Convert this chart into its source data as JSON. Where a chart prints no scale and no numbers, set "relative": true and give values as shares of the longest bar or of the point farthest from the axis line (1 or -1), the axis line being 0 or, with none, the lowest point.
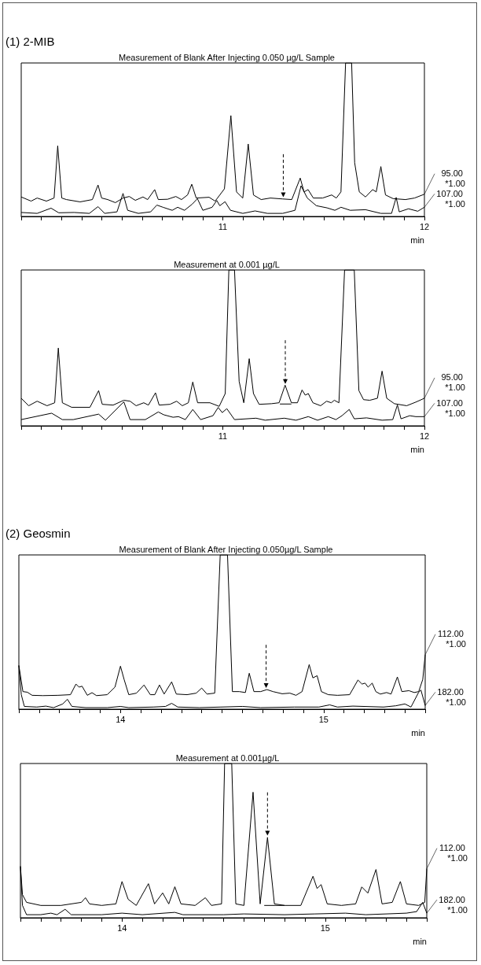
{
  "chart_data": [
    {
      "type": "line",
      "title": "(1) 2-MIB",
      "subtitle": "Measurement of Blank After Injecting 0.050 µg/L Sample",
      "xlabel": "min",
      "relative": true,
      "xlim": [
        10,
        12
      ],
      "xticks": [
        {
          "value": 10,
          "label": null
        },
        {
          "value": 10.1,
          "label": null
        },
        {
          "value": 10.2,
          "label": null
        },
        {
          "value": 10.3,
          "label": null
        },
        {
          "value": 10.4,
          "label": null
        },
        {
          "value": 10.5,
          "label": null
        },
        {
          "value": 10.6,
          "label": null
        },
        {
          "value": 10.7,
          "label": null
        },
        {
          "value": 10.8,
          "label": null
        },
        {
          "value": 10.9,
          "label": null
        },
        11,
        {
          "value": 11.1,
          "label": null
        },
        {
          "value": 11.2,
          "label": null
        },
        {
          "value": 11.3,
          "label": null
        },
        {
          "value": 11.4,
          "label": null
        },
        {
          "value": 11.5,
          "label": null
        },
        {
          "value": 11.6,
          "label": null
        },
        {
          "value": 11.7,
          "label": null
        },
        {
          "value": 11.8,
          "label": null
        },
        {
          "value": 11.9,
          "label": null
        },
        12
      ],
      "series": [
        {
          "name": "95.00 *1.00",
          "color": "#000000",
          "x": [
            10.0,
            10.049,
            10.079,
            10.125,
            10.163,
            10.181,
            10.201,
            10.224,
            10.292,
            10.353,
            10.381,
            10.399,
            10.429,
            10.467,
            10.505,
            10.536,
            10.566,
            10.604,
            10.627,
            10.662,
            10.68,
            10.726,
            10.767,
            10.795,
            10.825,
            10.846,
            10.868,
            10.932,
            10.962,
            11.008,
            11.04,
            11.068,
            11.099,
            11.126,
            11.152,
            11.19,
            11.236,
            11.297,
            11.342,
            11.384,
            11.403,
            11.423,
            11.449,
            11.495,
            11.54,
            11.563,
            11.586,
            11.609,
            11.639,
            11.654,
            11.677,
            11.708,
            11.743,
            11.761,
            11.784,
            11.807,
            11.845,
            11.906,
            11.951,
            12.0
          ],
          "values": [
            0.127,
            0.1,
            0.12,
            0.1,
            0.12,
            0.46,
            0.12,
            0.11,
            0.095,
            0.11,
            0.205,
            0.12,
            0.11,
            0.09,
            0.12,
            0.13,
            0.105,
            0.127,
            0.11,
            0.175,
            0.11,
            0.112,
            0.13,
            0.11,
            0.14,
            0.21,
            0.12,
            0.125,
            0.1,
            0.18,
            0.657,
            0.16,
            0.12,
            0.472,
            0.14,
            0.11,
            0.12,
            0.114,
            0.11,
            0.25,
            0.16,
            0.175,
            0.12,
            0.12,
            0.14,
            0.12,
            0.16,
            1,
            1,
            0.35,
            0.16,
            0.127,
            0.175,
            0.16,
            0.325,
            0.14,
            0.116,
            0.11,
            0.12,
            0.145
          ]
        },
        {
          "name": "107.00 *1.00",
          "color": "#000000",
          "x": [
            10.0,
            10.079,
            10.148,
            10.186,
            10.262,
            10.338,
            10.381,
            10.414,
            10.475,
            10.505,
            10.528,
            10.581,
            10.642,
            10.673,
            10.703,
            10.749,
            10.776,
            10.81,
            10.848,
            10.874,
            10.901,
            10.947,
            10.97,
            10.985,
            11.011,
            11.038,
            11.099,
            11.16,
            11.221,
            11.297,
            11.358,
            11.388,
            11.419,
            11.464,
            11.517,
            11.556,
            11.586,
            11.632,
            11.708,
            11.784,
            11.837,
            11.86,
            11.875,
            11.921,
            11.967,
            12.0
          ],
          "values": [
            0.026,
            0.02,
            0.054,
            0.024,
            0.026,
            0.02,
            0.064,
            0.02,
            0.03,
            0.15,
            0.04,
            0.02,
            0.03,
            0.074,
            0.06,
            0.04,
            0.06,
            0.04,
            0.08,
            0.116,
            0.04,
            0.06,
            0.104,
            0.07,
            0.096,
            0.04,
            0.02,
            0.036,
            0.02,
            0.02,
            0.04,
            0.2,
            0.12,
            0.07,
            0.056,
            0.04,
            0.06,
            0.04,
            0.044,
            0.02,
            0.02,
            0.124,
            0.03,
            0.05,
            0.034,
            0.06
          ]
        }
      ],
      "ref_lines": [
        {
          "axis": "x",
          "value": 11.3,
          "line_style": "dashed",
          "color": "#000000"
        }
      ],
      "legend": "right"
    },
    {
      "type": "line",
      "title": "Measurement at 0.001 µg/L",
      "xlabel": "min",
      "relative": true,
      "xlim": [
        10,
        12
      ],
      "xticks": [
        {
          "value": 10,
          "label": null
        },
        {
          "value": 10.1,
          "label": null
        },
        {
          "value": 10.2,
          "label": null
        },
        {
          "value": 10.3,
          "label": null
        },
        {
          "value": 10.4,
          "label": null
        },
        {
          "value": 10.5,
          "label": null
        },
        {
          "value": 10.6,
          "label": null
        },
        {
          "value": 10.7,
          "label": null
        },
        {
          "value": 10.8,
          "label": null
        },
        {
          "value": 10.9,
          "label": null
        },
        11,
        {
          "value": 11.1,
          "label": null
        },
        {
          "value": 11.2,
          "label": null
        },
        {
          "value": 11.3,
          "label": null
        },
        {
          "value": 11.4,
          "label": null
        },
        {
          "value": 11.5,
          "label": null
        },
        {
          "value": 11.6,
          "label": null
        },
        {
          "value": 11.7,
          "label": null
        },
        {
          "value": 11.8,
          "label": null
        },
        {
          "value": 11.9,
          "label": null
        },
        12
      ],
      "series": [
        {
          "name": "95.00 *1.00",
          "color": "#000000",
          "x": [
            10.0,
            10.037,
            10.079,
            10.128,
            10.166,
            10.184,
            10.204,
            10.25,
            10.341,
            10.384,
            10.402,
            10.456,
            10.509,
            10.54,
            10.57,
            10.608,
            10.631,
            10.666,
            10.684,
            10.738,
            10.771,
            10.799,
            10.829,
            10.851,
            10.875,
            10.936,
            10.982,
            11.012,
            11.03,
            11.058,
            11.081,
            11.104,
            11.131,
            11.152,
            11.18,
            11.241,
            11.279,
            11.309,
            11.34,
            11.37,
            11.393,
            11.409,
            11.424,
            11.447,
            11.485,
            11.515,
            11.538,
            11.553,
            11.576,
            11.604,
            11.652,
            11.675,
            11.698,
            11.729,
            11.767,
            11.79,
            11.813,
            11.851,
            11.912,
            11.957,
            12.0
          ],
          "values": [
            0.177,
            0.129,
            0.158,
            0.129,
            0.148,
            0.499,
            0.148,
            0.119,
            0.119,
            0.226,
            0.138,
            0.133,
            0.164,
            0.158,
            0.129,
            0.148,
            0.133,
            0.212,
            0.133,
            0.138,
            0.158,
            0.129,
            0.148,
            0.281,
            0.148,
            0.148,
            0.125,
            0.207,
            1,
            1,
            0.285,
            0.148,
            0.431,
            0.207,
            0.138,
            0.142,
            0.148,
            0.261,
            0.148,
            0.148,
            0.23,
            0.197,
            0.207,
            0.148,
            0.129,
            0.158,
            0.148,
            0.164,
            0.148,
            1,
            1,
            0.226,
            0.168,
            0.164,
            0.177,
            0.351,
            0.177,
            0.142,
            0.129,
            0.152,
            0.177
          ]
        },
        {
          "name": "107.00 *1.00",
          "color": "#000000",
          "x": [
            10.0,
            10.151,
            10.204,
            10.258,
            10.384,
            10.418,
            10.509,
            10.54,
            10.616,
            10.68,
            10.707,
            10.753,
            10.78,
            10.814,
            10.851,
            10.89,
            10.951,
            10.977,
            10.997,
            11.02,
            11.058,
            11.165,
            11.21,
            11.305,
            11.363,
            11.424,
            11.47,
            11.523,
            11.561,
            11.591,
            11.627,
            11.652,
            11.713,
            11.79,
            11.843,
            11.866,
            11.884,
            11.927,
            11.957,
            12.0
          ],
          "values": [
            0.04,
            0.081,
            0.04,
            0.04,
            0.075,
            0.036,
            0.154,
            0.04,
            0.04,
            0.089,
            0.071,
            0.055,
            0.059,
            0.04,
            0.105,
            0.04,
            0.065,
            0.118,
            0.085,
            0.11,
            0.04,
            0.049,
            0.036,
            0.049,
            0.036,
            0.059,
            0.036,
            0.059,
            0.04,
            0.065,
            0.105,
            0.045,
            0.051,
            0.036,
            0.04,
            0.134,
            0.045,
            0.065,
            0.059,
            0.059
          ]
        },
        {
          "color": "#000000",
          "x": [
            11.283,
            11.34
          ],
          "values": [
            0.14,
            0.14
          ]
        }
      ],
      "ref_lines": [
        {
          "axis": "x",
          "value": 11.31,
          "line_style": "dashed",
          "color": "#000000"
        }
      ],
      "legend": "right"
    },
    {
      "type": "line",
      "title": "(2) Geosmin",
      "subtitle": "Measurement of Blank After Injecting 0.050µg/L Sample",
      "xlabel": "min",
      "relative": true,
      "xlim": [
        13.5,
        15.5
      ],
      "xticks": [
        {
          "value": 13.5,
          "label": null
        },
        {
          "value": 13.6,
          "label": null
        },
        {
          "value": 13.7,
          "label": null
        },
        {
          "value": 13.8,
          "label": null
        },
        {
          "value": 13.9,
          "label": null
        },
        14,
        {
          "value": 14.1,
          "label": null
        },
        {
          "value": 14.2,
          "label": null
        },
        {
          "value": 14.3,
          "label": null
        },
        {
          "value": 14.4,
          "label": null
        },
        {
          "value": 14.5,
          "label": null
        },
        {
          "value": 14.6,
          "label": null
        },
        {
          "value": 14.7,
          "label": null
        },
        {
          "value": 14.8,
          "label": null
        },
        {
          "value": 14.9,
          "label": null
        },
        15,
        {
          "value": 15.1,
          "label": null
        },
        {
          "value": 15.2,
          "label": null
        },
        {
          "value": 15.3,
          "label": null
        },
        {
          "value": 15.4,
          "label": null
        },
        {
          "value": 15.5,
          "label": null
        }
      ],
      "series": [
        {
          "name": "112.00 *1.00",
          "color": "#000000",
          "x": [
            13.5,
            13.52,
            13.542,
            13.565,
            13.618,
            13.693,
            13.754,
            13.781,
            13.796,
            13.811,
            13.837,
            13.86,
            13.882,
            13.935,
            13.973,
            14.0,
            14.018,
            14.041,
            14.079,
            14.116,
            14.147,
            14.169,
            14.192,
            14.215,
            14.252,
            14.275,
            14.328,
            14.373,
            14.4,
            14.426,
            14.464,
            14.491,
            14.527,
            14.551,
            14.585,
            14.615,
            14.634,
            14.657,
            14.69,
            14.721,
            14.751,
            14.796,
            14.834,
            14.864,
            14.894,
            14.929,
            14.947,
            14.968,
            14.989,
            15.023,
            15.068,
            15.128,
            15.169,
            15.189,
            15.204,
            15.219,
            15.239,
            15.257,
            15.279,
            15.31,
            15.332,
            15.363,
            15.385,
            15.42,
            15.446,
            15.468,
            15.488,
            15.5
          ],
          "values": [
            0.283,
            0.114,
            0.11,
            0.09,
            0.088,
            0.09,
            0.094,
            0.163,
            0.143,
            0.149,
            0.09,
            0.107,
            0.088,
            0.094,
            0.143,
            0.279,
            0.193,
            0.094,
            0.104,
            0.157,
            0.094,
            0.094,
            0.157,
            0.098,
            0.177,
            0.098,
            0.094,
            0.104,
            0.137,
            0.098,
            0.104,
            1,
            1,
            0.114,
            0.114,
            0.108,
            0.233,
            0.114,
            0.114,
            0.127,
            0.114,
            0.1,
            0.104,
            0.09,
            0.114,
            0.289,
            0.203,
            0.217,
            0.114,
            0.094,
            0.09,
            0.094,
            0.189,
            0.163,
            0.169,
            0.143,
            0.169,
            0.114,
            0.098,
            0.108,
            0.098,
            0.209,
            0.114,
            0.12,
            0.108,
            0.114,
            0.193,
            0.353
          ]
        },
        {
          "name": "182.00 *1.00",
          "color": "#000000",
          "x": [
            13.5,
            13.512,
            13.527,
            13.588,
            13.633,
            13.671,
            13.716,
            13.739,
            13.761,
            13.829,
            13.935,
            14.0,
            14.041,
            14.162,
            14.222,
            14.252,
            14.282,
            14.388,
            14.494,
            14.6,
            14.69,
            14.856,
            14.977,
            15.03,
            15.068,
            15.144,
            15.295,
            15.355,
            15.4,
            15.43,
            15.468,
            15.479,
            15.5
          ],
          "values": [
            0.283,
            0.094,
            0.018,
            0.014,
            0.02,
            0.01,
            0.034,
            0.064,
            0.018,
            0.01,
            0.01,
            0.018,
            0.01,
            0.014,
            0.018,
            0.038,
            0.014,
            0.01,
            0.014,
            0.018,
            0.01,
            0.014,
            0.014,
            0.028,
            0.014,
            0.02,
            0.014,
            0.022,
            0.034,
            0.014,
            0.11,
            0.124,
            0.024
          ]
        }
      ],
      "ref_lines": [
        {
          "axis": "x",
          "value": 14.717,
          "line_style": "dashed",
          "color": "#000000"
        }
      ],
      "legend": "right"
    },
    {
      "type": "line",
      "title": "Measurement at 0.001µg/L",
      "xlabel": "min",
      "relative": true,
      "xlim": [
        13.5,
        15.5
      ],
      "xticks": [
        {
          "value": 13.5,
          "label": null
        },
        {
          "value": 13.6,
          "label": null
        },
        {
          "value": 13.7,
          "label": null
        },
        {
          "value": 13.8,
          "label": null
        },
        {
          "value": 13.9,
          "label": null
        },
        14,
        {
          "value": 14.1,
          "label": null
        },
        {
          "value": 14.2,
          "label": null
        },
        {
          "value": 14.3,
          "label": null
        },
        {
          "value": 14.4,
          "label": null
        },
        {
          "value": 14.5,
          "label": null
        },
        {
          "value": 14.6,
          "label": null
        },
        {
          "value": 14.7,
          "label": null
        },
        {
          "value": 14.8,
          "label": null
        },
        {
          "value": 14.9,
          "label": null
        },
        15,
        {
          "value": 15.1,
          "label": null
        },
        {
          "value": 15.2,
          "label": null
        },
        {
          "value": 15.3,
          "label": null
        },
        {
          "value": 15.4,
          "label": null
        },
        {
          "value": 15.5,
          "label": null
        }
      ],
      "series": [
        {
          "name": "112.00 *1.00",
          "color": "#000000",
          "x": [
            13.5,
            13.51,
            13.53,
            13.6,
            13.7,
            13.8,
            13.82,
            13.84,
            13.9,
            13.97,
            14.0,
            14.03,
            14.07,
            14.13,
            14.16,
            14.2,
            14.23,
            14.26,
            14.29,
            14.36,
            14.41,
            14.44,
            14.49,
            14.505,
            14.54,
            14.56,
            14.6,
            14.645,
            14.68,
            14.716,
            14.75,
            14.8,
            14.88,
            14.94,
            14.96,
            14.98,
            15.01,
            15.08,
            15.15,
            15.18,
            15.21,
            15.25,
            15.28,
            15.33,
            15.37,
            15.4,
            15.46,
            15.49,
            15.5
          ],
          "values": [
            0.335,
            0.15,
            0.1,
            0.08,
            0.08,
            0.1,
            0.13,
            0.09,
            0.08,
            0.09,
            0.235,
            0.12,
            0.08,
            0.221,
            0.09,
            0.161,
            0.09,
            0.201,
            0.09,
            0.08,
            0.13,
            0.08,
            0.09,
            1,
            1,
            0.09,
            0.08,
            0.814,
            0.09,
            0.521,
            0.09,
            0.08,
            0.08,
            0.269,
            0.19,
            0.215,
            0.09,
            0.08,
            0.09,
            0.2,
            0.16,
            0.313,
            0.09,
            0.1,
            0.235,
            0.09,
            0.08,
            0.1,
            0.318
          ]
        },
        {
          "name": "182.00 *1.00",
          "color": "#000000",
          "x": [
            13.5,
            13.51,
            13.53,
            13.6,
            13.65,
            13.68,
            13.72,
            13.75,
            13.9,
            14.0,
            14.1,
            14.26,
            14.3,
            14.5,
            14.6,
            14.8,
            14.95,
            15.1,
            15.2,
            15.4,
            15.45,
            15.48,
            15.5
          ],
          "values": [
            0.33,
            0.08,
            0.02,
            0.02,
            0.03,
            0.02,
            0.055,
            0.02,
            0.02,
            0.03,
            0.02,
            0.035,
            0.02,
            0.02,
            0.025,
            0.02,
            0.025,
            0.03,
            0.02,
            0.03,
            0.04,
            0.1,
            0.03
          ]
        },
        {
          "color": "#000000",
          "x": [
            14.7,
            14.8
          ],
          "values": [
            0.08,
            0.08
          ]
        }
      ],
      "ref_lines": [
        {
          "axis": "x",
          "value": 14.716,
          "line_style": "dashed",
          "color": "#000000"
        }
      ],
      "legend": "right"
    }
  ]
}
